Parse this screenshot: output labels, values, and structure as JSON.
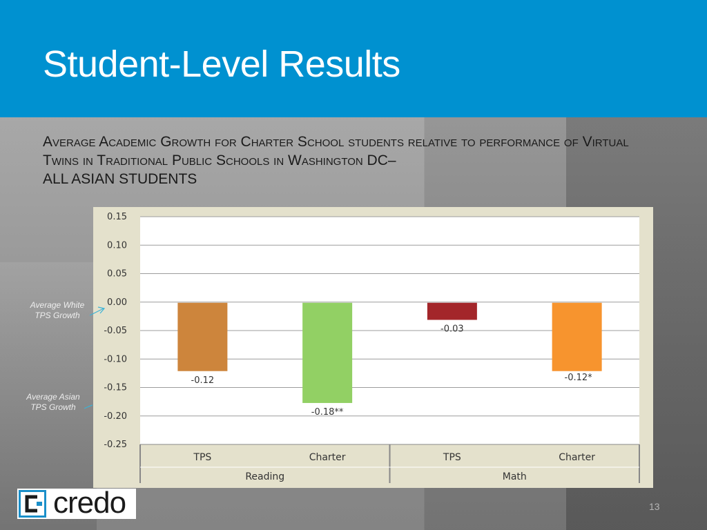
{
  "slide": {
    "title": "Student-Level Results",
    "subtitle_line1": "Average Academic Growth for Charter School students relative to performance of Virtual Twins in Traditional Public Schools in Washington DC–",
    "subtitle_line2": "ALL ASIAN STUDENTS",
    "page_number": "13",
    "logo_text": "credo"
  },
  "annotations": {
    "white_tps": "Average White TPS Growth",
    "asian_tps": "Average Asian TPS Growth"
  },
  "chart_data": {
    "type": "bar",
    "categories": [
      "TPS",
      "Charter",
      "TPS",
      "Charter"
    ],
    "groups": [
      "Reading",
      "Math"
    ],
    "values": [
      -0.12,
      -0.176,
      -0.03,
      -0.12
    ],
    "value_labels": [
      "-0.12",
      "-0.18**",
      "-0.03",
      "-0.12*"
    ],
    "bar_colors": [
      "#cd853c",
      "#92d064",
      "#a3262a",
      "#f7942e"
    ],
    "ylim": [
      -0.25,
      0.15
    ],
    "yticks": [
      "0.15",
      "0.10",
      "0.05",
      "0.00",
      "-0.05",
      "-0.10",
      "-0.15",
      "-0.20",
      "-0.25"
    ],
    "grid": true,
    "legend": "none"
  }
}
